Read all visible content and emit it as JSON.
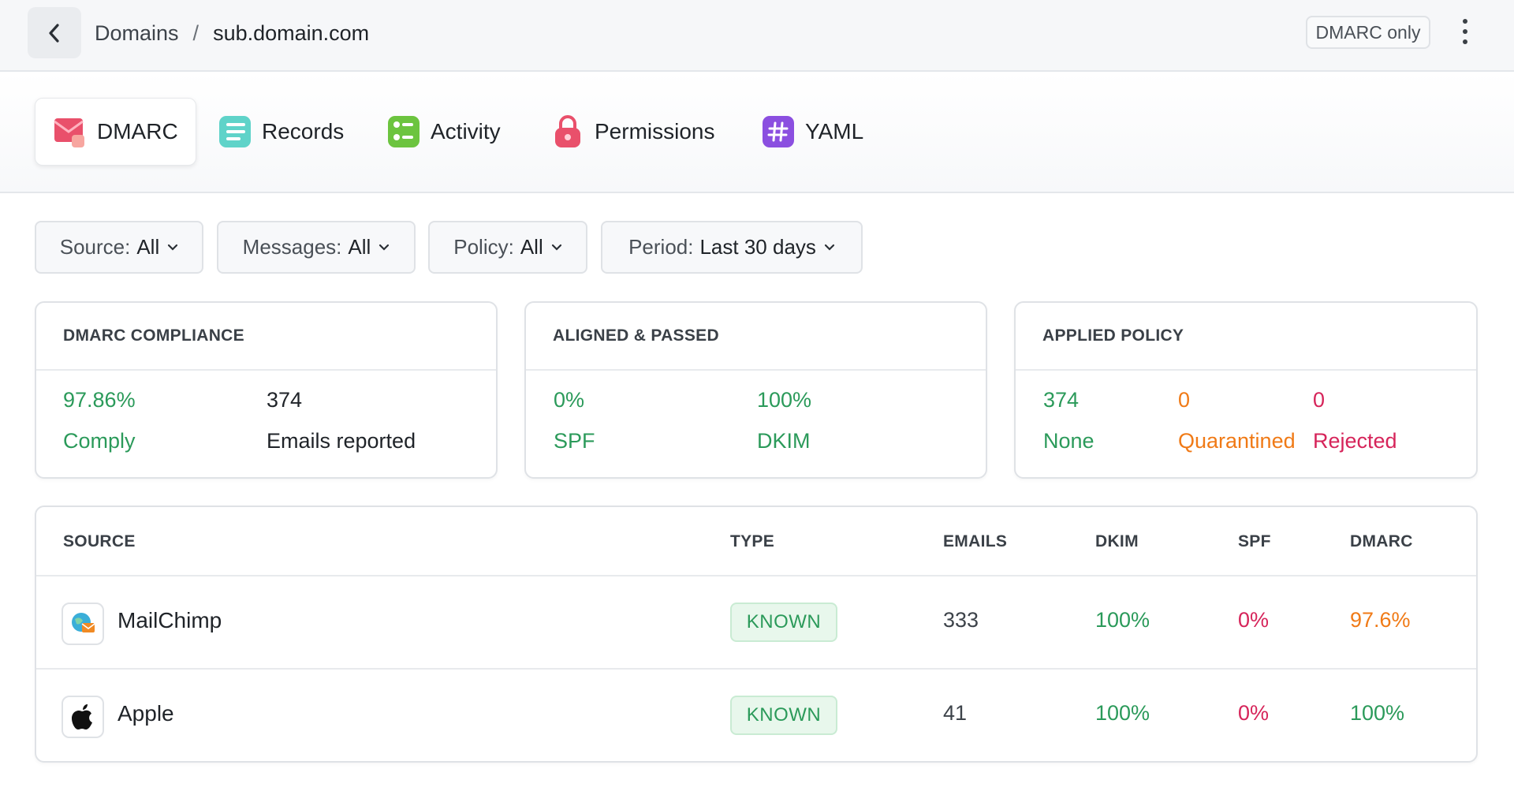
{
  "header": {
    "breadcrumb_parent": "Domains",
    "breadcrumb_separator": "/",
    "breadcrumb_current": "sub.domain.com",
    "mode_badge": "DMARC only"
  },
  "tabs": [
    {
      "label": "DMARC",
      "icon": "envelope-icon",
      "active": true
    },
    {
      "label": "Records",
      "icon": "list-icon"
    },
    {
      "label": "Activity",
      "icon": "activity-icon"
    },
    {
      "label": "Permissions",
      "icon": "lock-icon"
    },
    {
      "label": "YAML",
      "icon": "hash-icon"
    }
  ],
  "filters": [
    {
      "key": "Source:",
      "value": "All"
    },
    {
      "key": "Messages:",
      "value": "All"
    },
    {
      "key": "Policy:",
      "value": "All"
    },
    {
      "key": "Period:",
      "value": "Last 30 days"
    }
  ],
  "cards": {
    "compliance": {
      "title": "DMARC COMPLIANCE",
      "stats": [
        {
          "value": "97.86%",
          "label": "Comply"
        },
        {
          "value": "374",
          "label": "Emails reported"
        }
      ]
    },
    "aligned": {
      "title": "ALIGNED & PASSED",
      "stats": [
        {
          "value": "0%",
          "label": "SPF"
        },
        {
          "value": "100%",
          "label": "DKIM"
        }
      ]
    },
    "policy": {
      "title": "APPLIED POLICY",
      "stats": [
        {
          "value": "374",
          "label": "None"
        },
        {
          "value": "0",
          "label": "Quarantined"
        },
        {
          "value": "0",
          "label": "Rejected"
        }
      ]
    }
  },
  "table": {
    "columns": [
      "SOURCE",
      "TYPE",
      "EMAILS",
      "DKIM",
      "SPF",
      "DMARC"
    ],
    "rows": [
      {
        "source": "MailChimp",
        "icon": "mailchimp-icon",
        "type": "KNOWN",
        "emails": "333",
        "dkim": "100%",
        "spf": "0%",
        "dmarc": "97.6%"
      },
      {
        "source": "Apple",
        "icon": "apple-icon",
        "type": "KNOWN",
        "emails": "41",
        "dkim": "100%",
        "spf": "0%",
        "dmarc": "100%"
      }
    ]
  },
  "colors": {
    "success": "#2b9a5a",
    "warning": "#f07a16",
    "danger": "#d6245a"
  }
}
